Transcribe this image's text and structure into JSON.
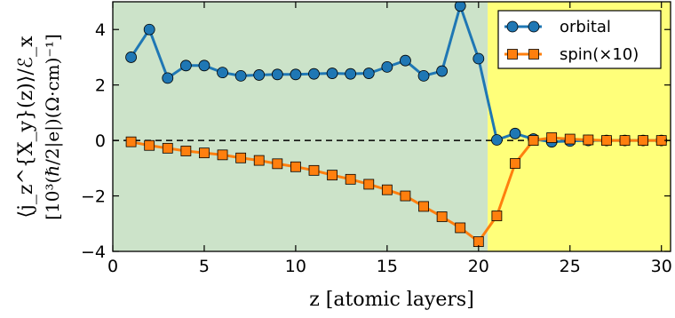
{
  "chart_data": {
    "type": "line",
    "xlabel": "z [atomic layers]",
    "ylabel_line1": "⟨j_z^{X_y}(z)⟩/ℰ_x",
    "ylabel_line2": "[10³(ℏ/2|e|)(Ω·cm)⁻¹]",
    "xlim": [
      0,
      30.5
    ],
    "ylim": [
      -4,
      5
    ],
    "xticks": [
      0,
      5,
      10,
      15,
      20,
      25,
      30
    ],
    "yticks": [
      -4,
      -2,
      0,
      2,
      4
    ],
    "regions": [
      {
        "from": 0,
        "to": 20.5,
        "color": "#cce3c9"
      },
      {
        "from": 20.5,
        "to": 30.5,
        "color": "#ffff7a"
      }
    ],
    "zero_line": {
      "y": 0,
      "style": "dashed"
    },
    "legend_position": "top-right",
    "series": [
      {
        "name": "orbital",
        "marker": "circle",
        "color": "#1f77b4",
        "x": [
          1,
          2,
          3,
          4,
          5,
          6,
          7,
          8,
          9,
          10,
          11,
          12,
          13,
          14,
          15,
          16,
          17,
          18,
          19,
          20,
          21,
          22,
          23,
          24,
          25,
          26,
          27,
          28,
          29,
          30
        ],
        "y": [
          3.0,
          4.0,
          2.25,
          2.7,
          2.7,
          2.45,
          2.33,
          2.36,
          2.38,
          2.38,
          2.4,
          2.42,
          2.4,
          2.42,
          2.65,
          2.88,
          2.33,
          2.5,
          4.85,
          2.95,
          0.02,
          0.25,
          0.05,
          -0.05,
          -0.02,
          0.0,
          0.0,
          0.0,
          0.0,
          0.0
        ]
      },
      {
        "name": "spin(×10)",
        "marker": "square",
        "color": "#ff7f0e",
        "x": [
          1,
          2,
          3,
          4,
          5,
          6,
          7,
          8,
          9,
          10,
          11,
          12,
          13,
          14,
          15,
          16,
          17,
          18,
          19,
          20,
          21,
          22,
          23,
          24,
          25,
          26,
          27,
          28,
          29,
          30
        ],
        "y": [
          -0.05,
          -0.18,
          -0.28,
          -0.38,
          -0.45,
          -0.52,
          -0.63,
          -0.72,
          -0.84,
          -0.95,
          -1.08,
          -1.25,
          -1.4,
          -1.58,
          -1.78,
          -2.0,
          -2.38,
          -2.75,
          -3.15,
          -3.65,
          -2.72,
          -0.83,
          0.0,
          0.1,
          0.05,
          0.02,
          0.0,
          0.0,
          0.0,
          0.0
        ]
      }
    ]
  }
}
